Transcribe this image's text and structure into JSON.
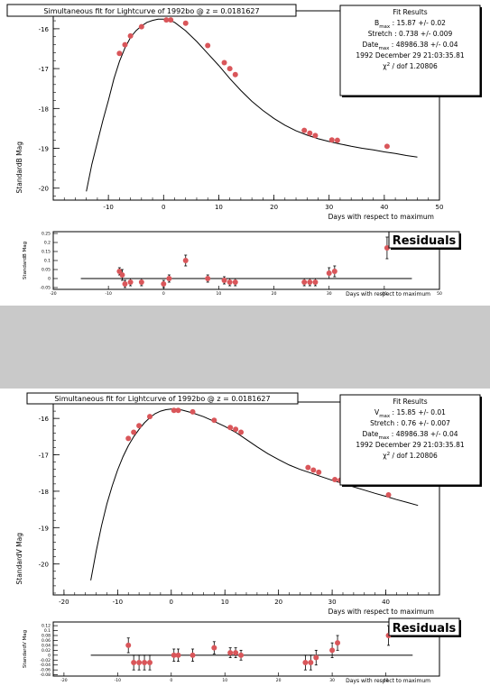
{
  "separator_color": "#c9c9c9",
  "marker_color": "#d9565a",
  "chart_data": [
    {
      "type": "scatter",
      "title": "Simultaneous fit for Lightcurve of 1992bo @ z = 0.0181627",
      "xlabel": "Days with respect to maximum",
      "ylabel": "StandardB Mag",
      "xlim": [
        -20,
        50
      ],
      "ylim": [
        -20.3,
        -15.55
      ],
      "y_inverted": true,
      "xticks": [
        -10,
        0,
        10,
        20,
        30,
        40,
        50
      ],
      "yticks": [
        -16,
        -17,
        -18,
        -19,
        -20
      ],
      "fit_box": {
        "title": "Fit Results",
        "lines": [
          {
            "main": "B",
            "sub": "max",
            "rest": " : 15.87 +/- 0.02"
          },
          {
            "main": "Stretch : 0.738 +/- 0.009",
            "sub": "",
            "rest": ""
          },
          {
            "main": "Date",
            "sub": "max",
            "rest": " : 48986.38 +/- 0.04"
          },
          {
            "main": "1992 December 29 21:03:35.81",
            "sub": "",
            "rest": ""
          },
          {
            "main": "χ",
            "sup": "2",
            "rest": " / dof 1.20806"
          }
        ]
      },
      "points": {
        "x": [
          -8,
          -7,
          -6,
          -4,
          0.5,
          1.3,
          4,
          8,
          11,
          12,
          13,
          25.5,
          26.5,
          27.5,
          30.5,
          31.5,
          40.5
        ],
        "y": [
          -16.62,
          -16.4,
          -16.18,
          -15.95,
          -15.78,
          -15.78,
          -15.86,
          -16.42,
          -16.85,
          -17.0,
          -17.15,
          -18.55,
          -18.62,
          -18.68,
          -18.79,
          -18.8,
          -18.95
        ]
      },
      "curve": {
        "x": [
          -14,
          -13,
          -12,
          -11,
          -10,
          -9,
          -8,
          -7,
          -6,
          -5,
          -4,
          -3,
          -2,
          -1,
          0,
          1,
          2,
          4,
          6,
          8,
          10,
          12,
          14,
          16,
          18,
          20,
          22,
          24,
          26,
          28,
          30,
          32,
          34,
          36,
          38,
          40,
          42,
          44,
          46
        ],
        "y": [
          -20.08,
          -19.4,
          -18.85,
          -18.3,
          -17.8,
          -17.25,
          -16.82,
          -16.48,
          -16.22,
          -16.05,
          -15.93,
          -15.84,
          -15.79,
          -15.76,
          -15.76,
          -15.78,
          -15.84,
          -16.05,
          -16.32,
          -16.62,
          -16.92,
          -17.25,
          -17.55,
          -17.82,
          -18.05,
          -18.25,
          -18.42,
          -18.56,
          -18.67,
          -18.76,
          -18.83,
          -18.89,
          -18.95,
          -19.0,
          -19.04,
          -19.09,
          -19.13,
          -19.18,
          -19.22
        ]
      },
      "residuals": {
        "title": "Residuals",
        "ylabel": "StandardB Mag",
        "xlabel": "Days with respect to maximum",
        "xlim": [
          -20,
          50
        ],
        "ylim": [
          -0.06,
          0.26
        ],
        "xticks": [
          -20,
          -10,
          0,
          10,
          20,
          30,
          40,
          50
        ],
        "yticks": [
          0.25,
          0.2,
          0.15,
          0.1,
          0.05,
          0,
          -0.05
        ],
        "zero_line_x": [
          -15,
          45
        ],
        "x": [
          -8,
          -7.5,
          -7,
          -6,
          -4,
          0,
          1,
          4,
          8,
          11,
          12,
          13,
          25.5,
          26.5,
          27.5,
          30,
          31,
          40.5
        ],
        "y": [
          0.04,
          0.02,
          -0.03,
          -0.02,
          -0.02,
          -0.03,
          0.0,
          0.1,
          0.0,
          -0.01,
          -0.02,
          -0.02,
          -0.02,
          -0.02,
          -0.02,
          0.03,
          0.04,
          0.17
        ],
        "err": [
          0.02,
          0.03,
          0.02,
          0.02,
          0.02,
          0.02,
          0.02,
          0.03,
          0.02,
          0.02,
          0.02,
          0.02,
          0.02,
          0.02,
          0.02,
          0.03,
          0.03,
          0.06
        ]
      }
    },
    {
      "type": "scatter",
      "title": "Simultaneous fit for Lightcurve of 1992bo @ z = 0.0181627",
      "xlabel": "Days with respect to maximum",
      "ylabel": "StandardV Mag",
      "xlim": [
        -22,
        50
      ],
      "ylim": [
        -20.85,
        -15.55
      ],
      "y_inverted": true,
      "xticks": [
        -20,
        -10,
        0,
        10,
        20,
        30,
        40
      ],
      "yticks": [
        -16,
        -17,
        -18,
        -19,
        -20
      ],
      "fit_box": {
        "title": "Fit Results",
        "lines": [
          {
            "main": "V",
            "sub": "max",
            "rest": " : 15.85 +/- 0.01"
          },
          {
            "main": "Stretch : 0.76 +/- 0.007",
            "sub": "",
            "rest": ""
          },
          {
            "main": "Date",
            "sub": "max",
            "rest": " : 48986.38 +/- 0.04"
          },
          {
            "main": "1992 December 29 21:03:35.81",
            "sub": "",
            "rest": ""
          },
          {
            "main": "χ",
            "sup": "2",
            "rest": " / dof 1.20806"
          }
        ]
      },
      "points": {
        "x": [
          -8,
          -7,
          -6,
          -4,
          0.5,
          1.3,
          4,
          8,
          11,
          12,
          13,
          25.5,
          26.5,
          27.5,
          30.5,
          31.5,
          40.5
        ],
        "y": [
          -16.55,
          -16.38,
          -16.2,
          -15.95,
          -15.78,
          -15.78,
          -15.82,
          -16.05,
          -16.25,
          -16.3,
          -16.38,
          -17.35,
          -17.42,
          -17.48,
          -17.68,
          -17.7,
          -18.1
        ]
      },
      "curve": {
        "x": [
          -15,
          -14,
          -13,
          -12,
          -11,
          -10,
          -9,
          -8,
          -7,
          -6,
          -5,
          -4,
          -3,
          -2,
          -1,
          0,
          1,
          2,
          4,
          6,
          8,
          10,
          12,
          14,
          16,
          18,
          20,
          22,
          24,
          26,
          28,
          30,
          32,
          34,
          36,
          38,
          40,
          42,
          44,
          46
        ],
        "y": [
          -20.45,
          -19.65,
          -18.95,
          -18.35,
          -17.85,
          -17.42,
          -17.05,
          -16.75,
          -16.5,
          -16.3,
          -16.12,
          -15.98,
          -15.87,
          -15.8,
          -15.76,
          -15.74,
          -15.74,
          -15.77,
          -15.85,
          -15.95,
          -16.08,
          -16.22,
          -16.38,
          -16.58,
          -16.78,
          -16.97,
          -17.13,
          -17.28,
          -17.4,
          -17.5,
          -17.6,
          -17.7,
          -17.79,
          -17.88,
          -17.97,
          -18.06,
          -18.14,
          -18.23,
          -18.31,
          -18.39
        ]
      },
      "residuals": {
        "title": "Residuals",
        "ylabel": "StandardV Mag",
        "xlabel": "Days with respect to maximum",
        "xlim": [
          -22,
          50
        ],
        "ylim": [
          -0.085,
          0.135
        ],
        "xticks": [
          -20,
          -10,
          0,
          10,
          20,
          30,
          40
        ],
        "yticks": [
          0.12,
          0.1,
          0.08,
          0.06,
          0.04,
          0.02,
          0,
          -0.02,
          -0.04,
          -0.06,
          -0.08
        ],
        "zero_line_x": [
          -15,
          45
        ],
        "x": [
          -8,
          -7,
          -6,
          -5,
          -4,
          0.5,
          1.3,
          4,
          8,
          11,
          12,
          13,
          25,
          26,
          27,
          30,
          31,
          40.5
        ],
        "y": [
          0.04,
          -0.03,
          -0.03,
          -0.03,
          -0.03,
          0.0,
          0.0,
          0.0,
          0.03,
          0.01,
          0.01,
          0.0,
          -0.03,
          -0.03,
          -0.01,
          0.02,
          0.05,
          0.08
        ],
        "err": [
          0.03,
          0.03,
          0.03,
          0.03,
          0.03,
          0.025,
          0.025,
          0.025,
          0.025,
          0.02,
          0.02,
          0.02,
          0.03,
          0.03,
          0.03,
          0.03,
          0.03,
          0.04
        ]
      }
    }
  ]
}
